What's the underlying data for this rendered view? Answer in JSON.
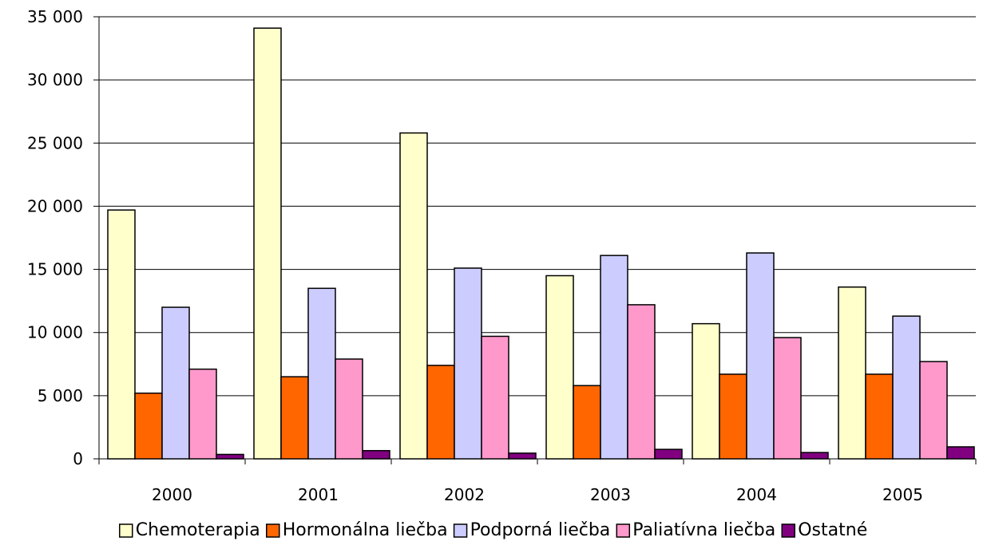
{
  "chart_data": {
    "type": "bar",
    "title": "",
    "xlabel": "",
    "ylabel": "",
    "categories": [
      "2000",
      "2001",
      "2002",
      "2003",
      "2004",
      "2005"
    ],
    "ylim": [
      0,
      35000
    ],
    "yticks": [
      0,
      5000,
      10000,
      15000,
      20000,
      25000,
      30000,
      35000
    ],
    "ytick_labels": [
      "0",
      "5 000",
      "10 000",
      "15 000",
      "20 000",
      "25 000",
      "30 000",
      "35 000"
    ],
    "grid": true,
    "legend_position": "bottom",
    "series": [
      {
        "name": "Chemoterapia",
        "color": "#FFFFCC",
        "values": [
          19700,
          34100,
          25800,
          14500,
          10700,
          13600
        ]
      },
      {
        "name": "Hormonálna liečba",
        "color": "#FF6600",
        "values": [
          5200,
          6500,
          7400,
          5800,
          6700,
          6700
        ]
      },
      {
        "name": "Podporná liečba",
        "color": "#CCCCFF",
        "values": [
          12000,
          13500,
          15100,
          16100,
          16300,
          11300
        ]
      },
      {
        "name": "Paliatívna liečba",
        "color": "#FF99CC",
        "values": [
          7100,
          7900,
          9700,
          12200,
          9600,
          7700
        ]
      },
      {
        "name": "Ostatné",
        "color": "#800080",
        "values": [
          350,
          650,
          450,
          750,
          500,
          950
        ]
      }
    ]
  }
}
